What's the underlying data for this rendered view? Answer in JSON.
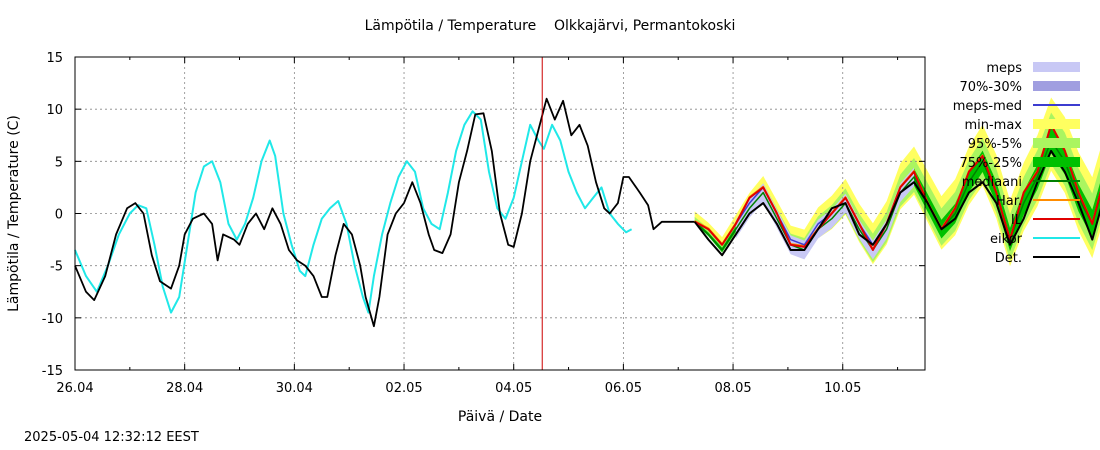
{
  "title": "Lämpötila / Temperature    Olkkajärvi, Permantokoski",
  "footer_timestamp": "2025-05-04 12:32:12 EEST",
  "chart_data": {
    "type": "line",
    "title": "Lämpötila / Temperature    Olkkajärvi, Permantokoski",
    "xlabel": "Päivä / Date",
    "ylabel": "Lämpötila / Temperature (C)",
    "xlim": [
      "2025-04-26",
      "2025-05-11"
    ],
    "ylim": [
      -15,
      15
    ],
    "x_ticks": [
      "26.04",
      "28.04",
      "30.04",
      "02.05",
      "04.05",
      "06.05",
      "08.05",
      "10.05"
    ],
    "y_ticks": [
      -15,
      -10,
      -5,
      0,
      5,
      10,
      15
    ],
    "grid": true,
    "legend_position": "right",
    "forecast_start": "2025-05-04 12:32",
    "colors": {
      "meps": "#c8c8f5",
      "meps_70_30": "#a09ee0",
      "meps_med": "#3c3cd0",
      "min_max": "#ffff60",
      "p95_5": "#aaf560",
      "p75_25": "#00c000",
      "mediaani": "#008000",
      "har": "#ff8c00",
      "il": "#e00000",
      "eikor": "#20e8e8",
      "det": "#000000",
      "forecast_line": "#cc0000",
      "grid": "#888888"
    },
    "legend": [
      {
        "label": "meps",
        "key": "meps",
        "style": "band"
      },
      {
        "label": "70%-30%",
        "key": "meps_70_30",
        "style": "band"
      },
      {
        "label": "meps-med",
        "key": "meps_med",
        "style": "line"
      },
      {
        "label": "min-max",
        "key": "min_max",
        "style": "band"
      },
      {
        "label": "95%-5%",
        "key": "p95_5",
        "style": "band"
      },
      {
        "label": "75%-25%",
        "key": "p75_25",
        "style": "band"
      },
      {
        "label": "mediaani",
        "key": "mediaani",
        "style": "line"
      },
      {
        "label": "Har.",
        "key": "har",
        "style": "line"
      },
      {
        "label": "IL",
        "key": "il",
        "style": "line"
      },
      {
        "label": "eikor",
        "key": "eikor",
        "style": "line"
      },
      {
        "label": "Det.",
        "key": "det",
        "style": "line"
      }
    ],
    "series_units": "x: days after 2025-04-26 00:00, y: degrees C",
    "eikor": [
      [
        0,
        -3.5
      ],
      [
        0.2,
        -6
      ],
      [
        0.4,
        -7.5
      ],
      [
        0.6,
        -5
      ],
      [
        0.8,
        -2
      ],
      [
        1.0,
        0
      ],
      [
        1.15,
        0.8
      ],
      [
        1.3,
        0.5
      ],
      [
        1.45,
        -3
      ],
      [
        1.6,
        -7
      ],
      [
        1.75,
        -9.5
      ],
      [
        1.9,
        -8
      ],
      [
        2.05,
        -3
      ],
      [
        2.2,
        2
      ],
      [
        2.35,
        4.5
      ],
      [
        2.5,
        5
      ],
      [
        2.65,
        3
      ],
      [
        2.8,
        -1
      ],
      [
        2.95,
        -2.5
      ],
      [
        3.1,
        -1
      ],
      [
        3.25,
        1.5
      ],
      [
        3.4,
        5
      ],
      [
        3.55,
        7
      ],
      [
        3.65,
        5.5
      ],
      [
        3.8,
        0
      ],
      [
        3.95,
        -3
      ],
      [
        4.1,
        -5.5
      ],
      [
        4.2,
        -6
      ],
      [
        4.35,
        -3
      ],
      [
        4.5,
        -0.5
      ],
      [
        4.65,
        0.5
      ],
      [
        4.8,
        1.2
      ],
      [
        4.95,
        -1
      ],
      [
        5.1,
        -5
      ],
      [
        5.25,
        -8
      ],
      [
        5.35,
        -9.5
      ],
      [
        5.45,
        -6
      ],
      [
        5.6,
        -2
      ],
      [
        5.75,
        1
      ],
      [
        5.9,
        3.5
      ],
      [
        6.05,
        5
      ],
      [
        6.2,
        4
      ],
      [
        6.35,
        0.5
      ],
      [
        6.5,
        -1
      ],
      [
        6.65,
        -1.5
      ],
      [
        6.8,
        2
      ],
      [
        6.95,
        6
      ],
      [
        7.1,
        8.5
      ],
      [
        7.25,
        9.8
      ],
      [
        7.4,
        9
      ],
      [
        7.55,
        4
      ],
      [
        7.7,
        0.5
      ],
      [
        7.85,
        -0.5
      ],
      [
        8.0,
        1.5
      ],
      [
        8.15,
        5
      ],
      [
        8.3,
        8.5
      ],
      [
        8.45,
        7
      ],
      [
        8.55,
        6.2
      ],
      [
        8.7,
        8.5
      ],
      [
        8.85,
        7
      ],
      [
        9.0,
        4
      ],
      [
        9.15,
        2
      ],
      [
        9.3,
        0.5
      ],
      [
        9.45,
        1.5
      ],
      [
        9.6,
        2.5
      ],
      [
        9.75,
        0
      ],
      [
        9.9,
        -1
      ],
      [
        10.05,
        -1.8
      ],
      [
        10.15,
        -1.5
      ]
    ],
    "det_hist": [
      [
        0,
        -5
      ],
      [
        0.2,
        -7.5
      ],
      [
        0.35,
        -8.3
      ],
      [
        0.55,
        -6
      ],
      [
        0.75,
        -2
      ],
      [
        0.95,
        0.5
      ],
      [
        1.1,
        1
      ],
      [
        1.25,
        0
      ],
      [
        1.4,
        -4
      ],
      [
        1.55,
        -6.5
      ],
      [
        1.75,
        -7.2
      ],
      [
        1.9,
        -5
      ],
      [
        2.0,
        -2
      ],
      [
        2.15,
        -0.5
      ],
      [
        2.35,
        0
      ],
      [
        2.5,
        -1
      ],
      [
        2.6,
        -4.5
      ],
      [
        2.7,
        -2
      ],
      [
        2.9,
        -2.5
      ],
      [
        3.0,
        -3
      ],
      [
        3.15,
        -1
      ],
      [
        3.3,
        0
      ],
      [
        3.45,
        -1.5
      ],
      [
        3.6,
        0.5
      ],
      [
        3.75,
        -1
      ],
      [
        3.9,
        -3.5
      ],
      [
        4.05,
        -4.5
      ],
      [
        4.2,
        -5
      ],
      [
        4.35,
        -6
      ],
      [
        4.5,
        -8
      ],
      [
        4.6,
        -8
      ],
      [
        4.75,
        -4
      ],
      [
        4.9,
        -1
      ],
      [
        5.05,
        -2
      ],
      [
        5.2,
        -5
      ],
      [
        5.3,
        -8
      ],
      [
        5.45,
        -10.8
      ],
      [
        5.55,
        -8
      ],
      [
        5.7,
        -2
      ],
      [
        5.85,
        0
      ],
      [
        6.0,
        1
      ],
      [
        6.15,
        3
      ],
      [
        6.3,
        1
      ],
      [
        6.45,
        -2
      ],
      [
        6.55,
        -3.5
      ],
      [
        6.7,
        -3.8
      ],
      [
        6.85,
        -2
      ],
      [
        7.0,
        3
      ],
      [
        7.15,
        6
      ],
      [
        7.3,
        9.5
      ],
      [
        7.45,
        9.6
      ],
      [
        7.6,
        6
      ],
      [
        7.75,
        0
      ],
      [
        7.9,
        -3
      ],
      [
        8.0,
        -3.2
      ],
      [
        8.15,
        0
      ],
      [
        8.3,
        5
      ],
      [
        8.45,
        8
      ],
      [
        8.6,
        11
      ],
      [
        8.75,
        9
      ],
      [
        8.9,
        10.8
      ],
      [
        9.05,
        7.5
      ],
      [
        9.2,
        8.5
      ],
      [
        9.35,
        6.5
      ],
      [
        9.5,
        3
      ],
      [
        9.65,
        0.5
      ],
      [
        9.75,
        0
      ],
      [
        9.9,
        1
      ],
      [
        10.0,
        3.5
      ],
      [
        10.1,
        3.5
      ],
      [
        10.3,
        2
      ],
      [
        10.45,
        0.8
      ],
      [
        10.55,
        -1.5
      ],
      [
        10.7,
        -0.8
      ],
      [
        10.85,
        -0.8
      ],
      [
        11.0,
        -0.8
      ],
      [
        11.2,
        -0.8
      ],
      [
        11.3,
        -0.8
      ]
    ],
    "forecast_x": [
      11.3,
      11.55,
      11.8,
      12.05,
      12.3,
      12.55,
      12.8,
      13.05,
      13.3,
      13.55,
      13.8,
      14.05,
      14.3,
      14.55,
      14.8,
      15.05,
      15.3,
      15.55,
      15.8,
      16.05,
      16.3,
      16.55,
      16.8,
      17.05,
      17.3,
      17.55,
      17.8,
      18.05,
      18.3,
      18.55,
      19.05,
      19.3,
      19.55,
      19.8,
      20.0
    ],
    "det": [
      -0.8,
      -2.5,
      -4,
      -2,
      0,
      1,
      -1,
      -3.5,
      -3.5,
      -1.5,
      0.5,
      1,
      -2,
      -3,
      -1,
      2,
      3,
      1,
      -1.5,
      -0.5,
      2,
      3,
      1,
      -3,
      -0.5,
      3,
      6,
      4,
      1,
      -2.5,
      7,
      10.5,
      7,
      3,
      3
    ],
    "il": [
      -0.8,
      -1.5,
      -3,
      -1,
      1.5,
      2.5,
      0,
      -3,
      -3.2,
      -1.5,
      0,
      1.5,
      -1,
      -3.5,
      -1,
      2.5,
      4,
      1,
      -1.5,
      0.5,
      4,
      5.5,
      2,
      -2.5,
      2,
      4,
      8.5,
      6,
      2,
      -1,
      9,
      12.8,
      8,
      4.5,
      4.5
    ],
    "mediaani": [
      -0.8,
      -2,
      -3.5,
      -1.5,
      0.5,
      2,
      -0.5,
      -3,
      -3.5,
      -1.5,
      -0.5,
      1,
      -1.5,
      -3.5,
      -1.5,
      2,
      3.5,
      1,
      -1.5,
      0,
      3,
      5,
      2,
      -2.5,
      1,
      3.5,
      7,
      5,
      1.5,
      -1,
      8,
      11,
      7,
      3.5,
      4
    ]
  }
}
